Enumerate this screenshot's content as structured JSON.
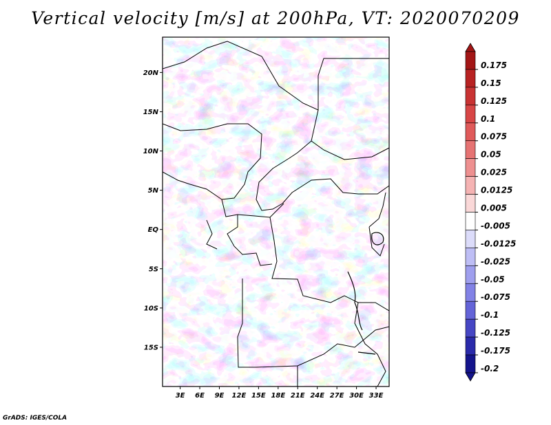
{
  "title": "Vertical velocity [m/s] at 200hPa, VT: 2020070209",
  "credit": "GrADS: IGES/COLA",
  "map": {
    "lat_ticks": [
      "20N",
      "15N",
      "10N",
      "5N",
      "EQ",
      "5S",
      "10S",
      "15S"
    ],
    "lat_values": [
      20,
      15,
      10,
      5,
      0,
      -5,
      -10,
      -15
    ],
    "lon_ticks": [
      "3E",
      "6E",
      "9E",
      "12E",
      "15E",
      "18E",
      "21E",
      "24E",
      "27E",
      "30E",
      "33E"
    ],
    "lon_values": [
      3,
      6,
      9,
      12,
      15,
      18,
      21,
      24,
      27,
      30,
      33
    ],
    "lat_range": [
      -20,
      24.5
    ],
    "lon_range": [
      0.3,
      35
    ]
  },
  "colorbar": {
    "labels": [
      "0.175",
      "0.15",
      "0.125",
      "0.1",
      "0.075",
      "0.05",
      "0.025",
      "0.0125",
      "0.005",
      "-0.005",
      "-0.0125",
      "-0.025",
      "-0.05",
      "-0.075",
      "-0.1",
      "-0.125",
      "-0.175",
      "-0.2"
    ],
    "colors": [
      "#a31616",
      "#b82222",
      "#c93333",
      "#d84646",
      "#e05a5a",
      "#e67373",
      "#ee9090",
      "#f5b3b3",
      "#fad8d8",
      "#ffffff",
      "#dcdcfa",
      "#bebef5",
      "#9f9fee",
      "#8282e6",
      "#6464d8",
      "#4646c4",
      "#2a2aaa",
      "#14148c"
    ]
  }
}
